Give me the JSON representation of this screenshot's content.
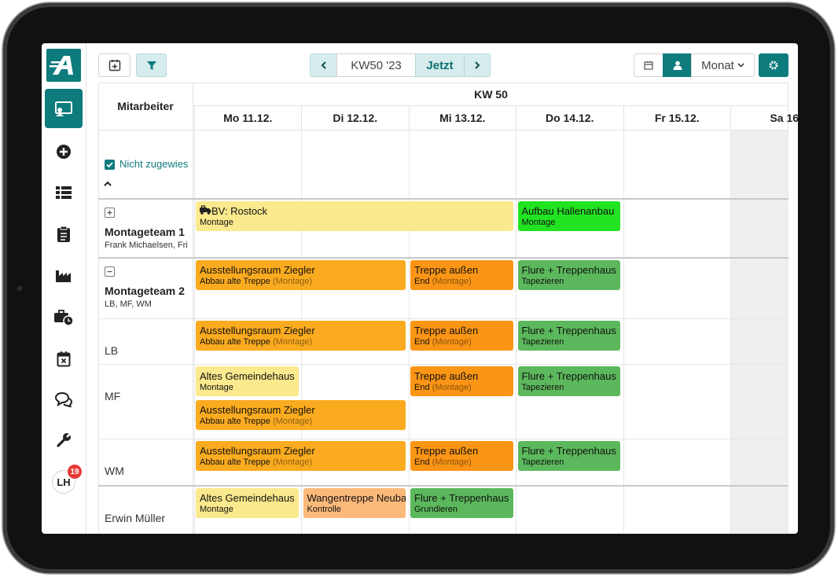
{
  "sidebar": {
    "avatar": "LH",
    "badge": "19"
  },
  "toolbar": {
    "week": "KW50 '23",
    "today": "Jetzt",
    "view": "Monat"
  },
  "grid": {
    "header": "Mitarbeiter",
    "week": "KW 50",
    "days": [
      "Mo 11.12.",
      "Di 12.12.",
      "Mi 13.12.",
      "Do 14.12.",
      "Fr 15.12.",
      "Sa 16"
    ]
  },
  "unassigned": {
    "label": "Nicht zugewies",
    "checked": true
  },
  "rows": [
    {
      "title": "Montageteam 1",
      "subtitle": "Frank Michaelsen, Fri",
      "expanded": false
    },
    {
      "title": "Montageteam 2",
      "subtitle": "LB, MF, WM",
      "expanded": true
    },
    {
      "title": "LB"
    },
    {
      "title": "MF"
    },
    {
      "title": "WM"
    },
    {
      "title": "Erwin Müller"
    }
  ],
  "events": [
    {
      "row": 0,
      "day": 0,
      "span": 3,
      "lane": 0,
      "title": "BV: Rostock",
      "subtitle": "Montage",
      "color": "#fbe98d",
      "icon": "vehicle"
    },
    {
      "row": 0,
      "day": 3,
      "span": 1,
      "lane": 0,
      "title": "Aufbau Hallenanbau",
      "subtitle": "Montage",
      "color": "#22e322"
    },
    {
      "row": 1,
      "day": 0,
      "span": 2,
      "lane": 0,
      "title": "Ausstellungsraum Ziegler",
      "subtitle": "Abbau alte Treppe",
      "note": "(Montage)",
      "color": "#fbab1f"
    },
    {
      "row": 1,
      "day": 2,
      "span": 1,
      "lane": 0,
      "title": "Treppe außen",
      "subtitle": "End",
      "note": "(Montage)",
      "color": "#fb9515"
    },
    {
      "row": 1,
      "day": 3,
      "span": 1,
      "lane": 0,
      "title": "Flure + Treppenhaus",
      "subtitle": "Tapezieren",
      "color": "#5cb85c"
    },
    {
      "row": 2,
      "day": 0,
      "span": 2,
      "lane": 0,
      "title": "Ausstellungsraum Ziegler",
      "subtitle": "Abbau alte Treppe",
      "note": "(Montage)",
      "color": "#fbab1f"
    },
    {
      "row": 2,
      "day": 2,
      "span": 1,
      "lane": 0,
      "title": "Treppe außen",
      "subtitle": "End",
      "note": "(Montage)",
      "color": "#fb9515"
    },
    {
      "row": 2,
      "day": 3,
      "span": 1,
      "lane": 0,
      "title": "Flure + Treppenhaus",
      "subtitle": "Tapezieren",
      "color": "#5cb85c"
    },
    {
      "row": 3,
      "day": 0,
      "span": 1,
      "lane": 0,
      "title": "Altes Gemeindehaus",
      "subtitle": "Montage",
      "color": "#fbe98d"
    },
    {
      "row": 3,
      "day": 2,
      "span": 1,
      "lane": 0,
      "title": "Treppe außen",
      "subtitle": "End",
      "note": "(Montage)",
      "color": "#fb9515"
    },
    {
      "row": 3,
      "day": 3,
      "span": 1,
      "lane": 0,
      "title": "Flure + Treppenhaus",
      "subtitle": "Tapezieren",
      "color": "#5cb85c"
    },
    {
      "row": 3,
      "day": 0,
      "span": 2,
      "lane": 1,
      "title": "Ausstellungsraum Ziegler",
      "subtitle": "Abbau alte Treppe",
      "note": "(Montage)",
      "color": "#fbab1f"
    },
    {
      "row": 4,
      "day": 0,
      "span": 2,
      "lane": 0,
      "title": "Ausstellungsraum Ziegler",
      "subtitle": "Abbau alte Treppe",
      "note": "(Montage)",
      "color": "#fbab1f"
    },
    {
      "row": 4,
      "day": 2,
      "span": 1,
      "lane": 0,
      "title": "Treppe außen",
      "subtitle": "End",
      "note": "(Montage)",
      "color": "#fb9515"
    },
    {
      "row": 4,
      "day": 3,
      "span": 1,
      "lane": 0,
      "title": "Flure + Treppenhaus",
      "subtitle": "Tapezieren",
      "color": "#5cb85c"
    },
    {
      "row": 5,
      "day": 0,
      "span": 1,
      "lane": 0,
      "title": "Altes Gemeindehaus",
      "subtitle": "Montage",
      "color": "#fbe98d"
    },
    {
      "row": 5,
      "day": 1,
      "span": 1,
      "lane": 0,
      "title": "Wangentreppe Neuba",
      "subtitle": "Kontrolle",
      "color": "#fbb97a"
    },
    {
      "row": 5,
      "day": 2,
      "span": 1,
      "lane": 0,
      "title": "Flure + Treppenhaus",
      "subtitle": "Grundieren",
      "color": "#5cb85c"
    }
  ]
}
